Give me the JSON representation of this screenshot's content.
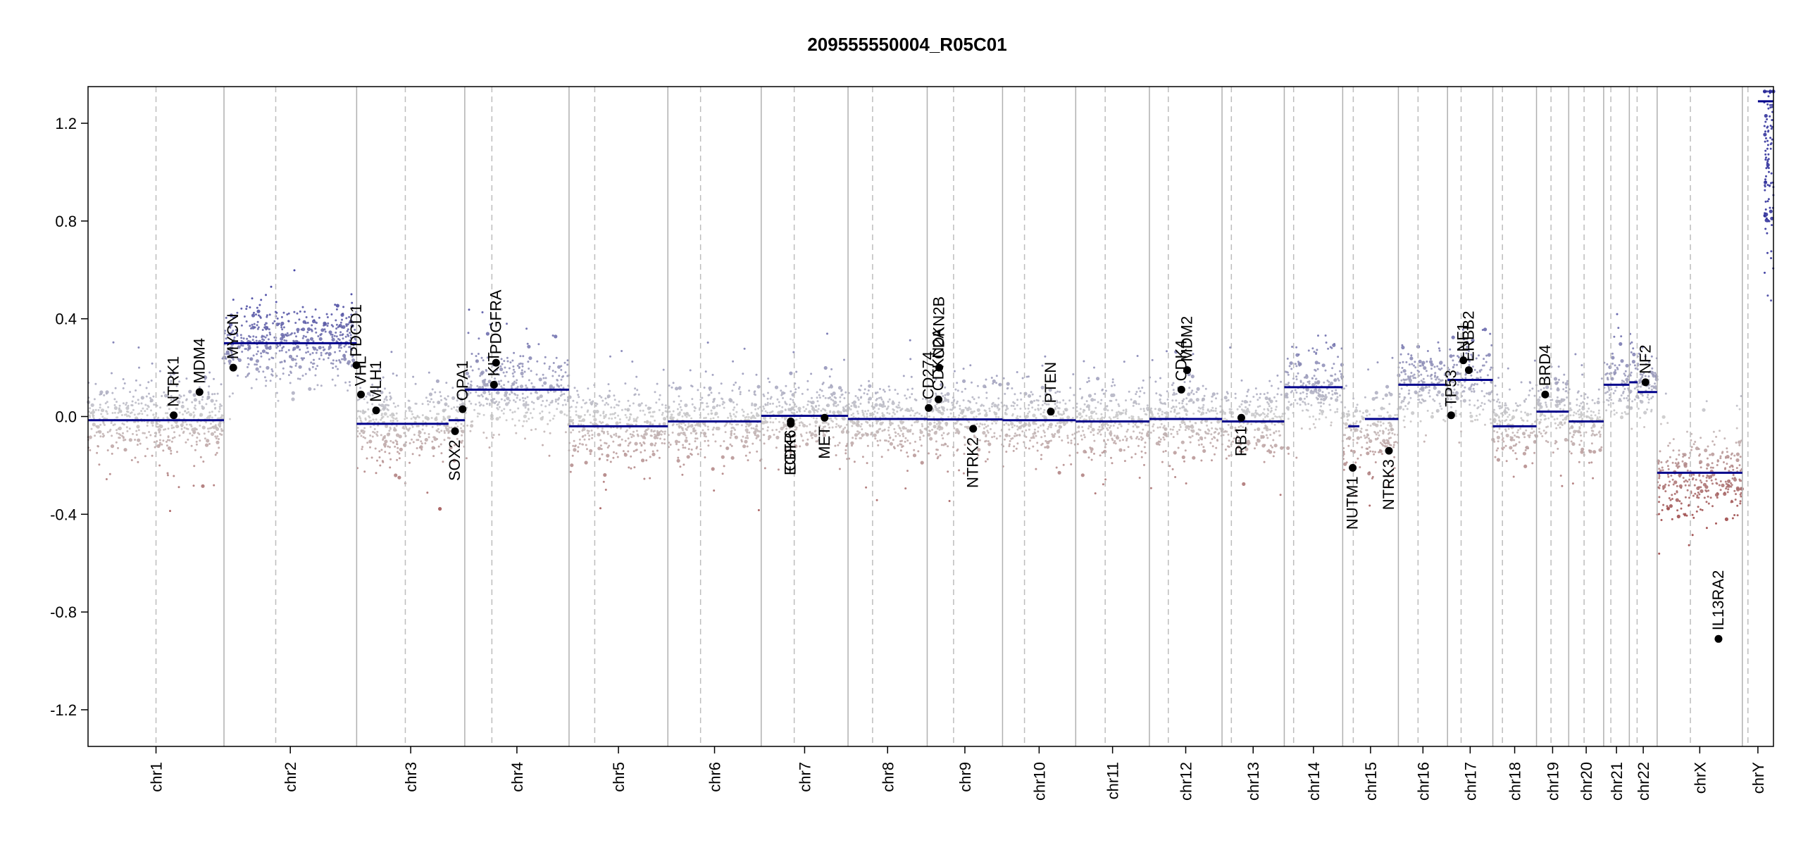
{
  "chart_data": {
    "type": "scatter",
    "title": "209555550004_R05C01",
    "xlabel": "",
    "ylabel": "",
    "ylim": [
      -1.35,
      1.35
    ],
    "y_ticks": [
      "1.2",
      "0.8",
      "0.4",
      "0.0",
      "-0.4",
      "-0.8",
      "-1.2"
    ],
    "y_tick_values": [
      1.2,
      0.8,
      0.4,
      0.0,
      -0.4,
      -0.8,
      -1.2
    ],
    "grid": false,
    "colors": {
      "gain": "#2a2a9a",
      "loss": "#9a3a3a",
      "neutral": "#c8c8c8",
      "segment": "#00008b",
      "gene": "#000000",
      "boundary": "#b0b0b0"
    },
    "chromosomes": [
      {
        "name": "chr1",
        "length": 249,
        "centromere": 0.5,
        "mean": -0.01,
        "spread": 0.1,
        "segments": [
          {
            "start": 0,
            "end": 1,
            "value": -0.015
          }
        ]
      },
      {
        "name": "chr2",
        "length": 243,
        "centromere": 0.39,
        "mean": 0.3,
        "spread": 0.11,
        "segments": [
          {
            "start": 0,
            "end": 1,
            "value": 0.3
          }
        ]
      },
      {
        "name": "chr3",
        "length": 198,
        "centromere": 0.45,
        "mean": -0.03,
        "spread": 0.1,
        "segments": [
          {
            "start": 0,
            "end": 0.85,
            "value": -0.03
          },
          {
            "start": 0.85,
            "end": 1,
            "value": -0.015
          }
        ]
      },
      {
        "name": "chr4",
        "length": 191,
        "centromere": 0.26,
        "mean": 0.11,
        "spread": 0.1,
        "segments": [
          {
            "start": 0,
            "end": 1,
            "value": 0.11
          }
        ]
      },
      {
        "name": "chr5",
        "length": 181,
        "centromere": 0.26,
        "mean": -0.04,
        "spread": 0.1,
        "segments": [
          {
            "start": 0,
            "end": 1,
            "value": -0.04
          }
        ]
      },
      {
        "name": "chr6",
        "length": 171,
        "centromere": 0.35,
        "mean": -0.02,
        "spread": 0.1,
        "segments": [
          {
            "start": 0,
            "end": 1,
            "value": -0.02
          }
        ]
      },
      {
        "name": "chr7",
        "length": 159,
        "centromere": 0.38,
        "mean": 0.0,
        "spread": 0.1,
        "segments": [
          {
            "start": 0,
            "end": 1,
            "value": 0.003
          }
        ]
      },
      {
        "name": "chr8",
        "length": 145,
        "centromere": 0.31,
        "mean": -0.01,
        "spread": 0.1,
        "segments": [
          {
            "start": 0,
            "end": 1,
            "value": -0.01
          }
        ]
      },
      {
        "name": "chr9",
        "length": 138,
        "centromere": 0.35,
        "mean": -0.01,
        "spread": 0.1,
        "segments": [
          {
            "start": 0,
            "end": 1,
            "value": -0.012
          }
        ]
      },
      {
        "name": "chr10",
        "length": 134,
        "centromere": 0.3,
        "mean": -0.01,
        "spread": 0.1,
        "segments": [
          {
            "start": 0,
            "end": 1,
            "value": -0.015
          }
        ]
      },
      {
        "name": "chr11",
        "length": 135,
        "centromere": 0.4,
        "mean": -0.02,
        "spread": 0.1,
        "segments": [
          {
            "start": 0,
            "end": 1,
            "value": -0.02
          }
        ]
      },
      {
        "name": "chr12",
        "length": 133,
        "centromere": 0.26,
        "mean": -0.01,
        "spread": 0.1,
        "segments": [
          {
            "start": 0,
            "end": 1,
            "value": -0.01
          }
        ]
      },
      {
        "name": "chr13",
        "length": 114,
        "centromere": 0.15,
        "mean": -0.02,
        "spread": 0.1,
        "segments": [
          {
            "start": 0,
            "end": 1,
            "value": -0.02
          }
        ]
      },
      {
        "name": "chr14",
        "length": 107,
        "centromere": 0.16,
        "mean": 0.12,
        "spread": 0.1,
        "segments": [
          {
            "start": 0,
            "end": 1,
            "value": 0.12
          }
        ]
      },
      {
        "name": "chr15",
        "length": 102,
        "centromere": 0.19,
        "mean": -0.06,
        "spread": 0.1,
        "segments": [
          {
            "start": 0.1,
            "end": 0.3,
            "value": -0.04
          },
          {
            "start": 0.4,
            "end": 1,
            "value": -0.01
          }
        ]
      },
      {
        "name": "chr16",
        "length": 90,
        "centromere": 0.4,
        "mean": 0.13,
        "spread": 0.1,
        "segments": [
          {
            "start": 0,
            "end": 1,
            "value": 0.13
          }
        ]
      },
      {
        "name": "chr17",
        "length": 83,
        "centromere": 0.3,
        "mean": 0.15,
        "spread": 0.1,
        "segments": [
          {
            "start": 0,
            "end": 1,
            "value": 0.15
          }
        ]
      },
      {
        "name": "chr18",
        "length": 80,
        "centromere": 0.22,
        "mean": -0.04,
        "spread": 0.1,
        "segments": [
          {
            "start": 0,
            "end": 1,
            "value": -0.04
          }
        ]
      },
      {
        "name": "chr19",
        "length": 59,
        "centromere": 0.45,
        "mean": 0.02,
        "spread": 0.1,
        "segments": [
          {
            "start": 0,
            "end": 1,
            "value": 0.02
          }
        ]
      },
      {
        "name": "chr20",
        "length": 64,
        "centromere": 0.44,
        "mean": -0.02,
        "spread": 0.1,
        "segments": [
          {
            "start": 0,
            "end": 1,
            "value": -0.02
          }
        ]
      },
      {
        "name": "chr21",
        "length": 47,
        "centromere": 0.28,
        "mean": 0.13,
        "spread": 0.1,
        "segments": [
          {
            "start": 0,
            "end": 1,
            "value": 0.13
          }
        ]
      },
      {
        "name": "chr22",
        "length": 51,
        "centromere": 0.28,
        "mean": 0.13,
        "spread": 0.1,
        "segments": [
          {
            "start": 0,
            "end": 0.3,
            "value": 0.14
          },
          {
            "start": 0.3,
            "end": 1,
            "value": 0.1
          }
        ]
      },
      {
        "name": "chrX",
        "length": 156,
        "centromere": 0.39,
        "mean": -0.25,
        "spread": 0.11,
        "segments": [
          {
            "start": 0,
            "end": 1,
            "value": -0.23
          }
        ]
      },
      {
        "name": "chrY",
        "length": 57,
        "centromere": 0.18,
        "mean": 1.1,
        "spread": 0.15,
        "segments": [
          {
            "start": 0.5,
            "end": 1,
            "value": 1.29
          }
        ]
      }
    ],
    "genes": [
      {
        "name": "NTRK1",
        "chrom": "chr1",
        "pos": 0.63,
        "y": 0.005,
        "label_side": "above"
      },
      {
        "name": "MDM4",
        "chrom": "chr1",
        "pos": 0.82,
        "y": 0.1,
        "label_side": "above"
      },
      {
        "name": "MYCN",
        "chrom": "chr2",
        "pos": 0.07,
        "y": 0.2,
        "label_side": "above"
      },
      {
        "name": "PDCD1",
        "chrom": "chr2",
        "pos": 0.998,
        "y": 0.21,
        "label_side": "above"
      },
      {
        "name": "VHL",
        "chrom": "chr3",
        "pos": 0.04,
        "y": 0.09,
        "label_side": "above"
      },
      {
        "name": "MLH1",
        "chrom": "chr3",
        "pos": 0.18,
        "y": 0.025,
        "label_side": "above"
      },
      {
        "name": "SOX2",
        "chrom": "chr3",
        "pos": 0.91,
        "y": -0.06,
        "label_side": "below"
      },
      {
        "name": "OPA1",
        "chrom": "chr3",
        "pos": 0.98,
        "y": 0.03,
        "label_side": "above"
      },
      {
        "name": "KIT",
        "chrom": "chr4",
        "pos": 0.28,
        "y": 0.13,
        "label_side": "above"
      },
      {
        "name": "PDGFRA",
        "chrom": "chr4",
        "pos": 0.3,
        "y": 0.22,
        "label_side": "above"
      },
      {
        "name": "EGFR",
        "chrom": "chr7",
        "pos": 0.34,
        "y": -0.03,
        "label_side": "below"
      },
      {
        "name": "CDK6",
        "chrom": "chr7",
        "pos": 0.34,
        "y": -0.02,
        "label_side": "below"
      },
      {
        "name": "MET",
        "chrom": "chr7",
        "pos": 0.73,
        "y": -0.005,
        "label_side": "below"
      },
      {
        "name": "CD274",
        "chrom": "chr9",
        "pos": 0.02,
        "y": 0.035,
        "label_side": "above"
      },
      {
        "name": "CDKN2A",
        "chrom": "chr9",
        "pos": 0.15,
        "y": 0.07,
        "label_side": "above"
      },
      {
        "name": "CDKN2B",
        "chrom": "chr9",
        "pos": 0.16,
        "y": 0.2,
        "label_side": "above"
      },
      {
        "name": "NTRK2",
        "chrom": "chr9",
        "pos": 0.61,
        "y": -0.05,
        "label_side": "below"
      },
      {
        "name": "PTEN",
        "chrom": "chr10",
        "pos": 0.66,
        "y": 0.02,
        "label_side": "above"
      },
      {
        "name": "CDK4",
        "chrom": "chr12",
        "pos": 0.44,
        "y": 0.11,
        "label_side": "above"
      },
      {
        "name": "MDM2",
        "chrom": "chr12",
        "pos": 0.52,
        "y": 0.19,
        "label_side": "above"
      },
      {
        "name": "RB1",
        "chrom": "chr13",
        "pos": 0.31,
        "y": -0.005,
        "label_side": "below"
      },
      {
        "name": "NUTM1",
        "chrom": "chr15",
        "pos": 0.18,
        "y": -0.21,
        "label_side": "below"
      },
      {
        "name": "NTRK3",
        "chrom": "chr15",
        "pos": 0.83,
        "y": -0.14,
        "label_side": "below"
      },
      {
        "name": "TP53",
        "chrom": "chr17",
        "pos": 0.08,
        "y": 0.005,
        "label_side": "above"
      },
      {
        "name": "NF1",
        "chrom": "chr17",
        "pos": 0.35,
        "y": 0.23,
        "label_side": "above"
      },
      {
        "name": "ERBB2",
        "chrom": "chr17",
        "pos": 0.47,
        "y": 0.19,
        "label_side": "above"
      },
      {
        "name": "BRD4",
        "chrom": "chr19",
        "pos": 0.27,
        "y": 0.09,
        "label_side": "above"
      },
      {
        "name": "NF2",
        "chrom": "chr22",
        "pos": 0.58,
        "y": 0.14,
        "label_side": "above"
      },
      {
        "name": "IL13RA2",
        "chrom": "chrX",
        "pos": 0.72,
        "y": -0.91,
        "label_side": "above"
      }
    ]
  }
}
